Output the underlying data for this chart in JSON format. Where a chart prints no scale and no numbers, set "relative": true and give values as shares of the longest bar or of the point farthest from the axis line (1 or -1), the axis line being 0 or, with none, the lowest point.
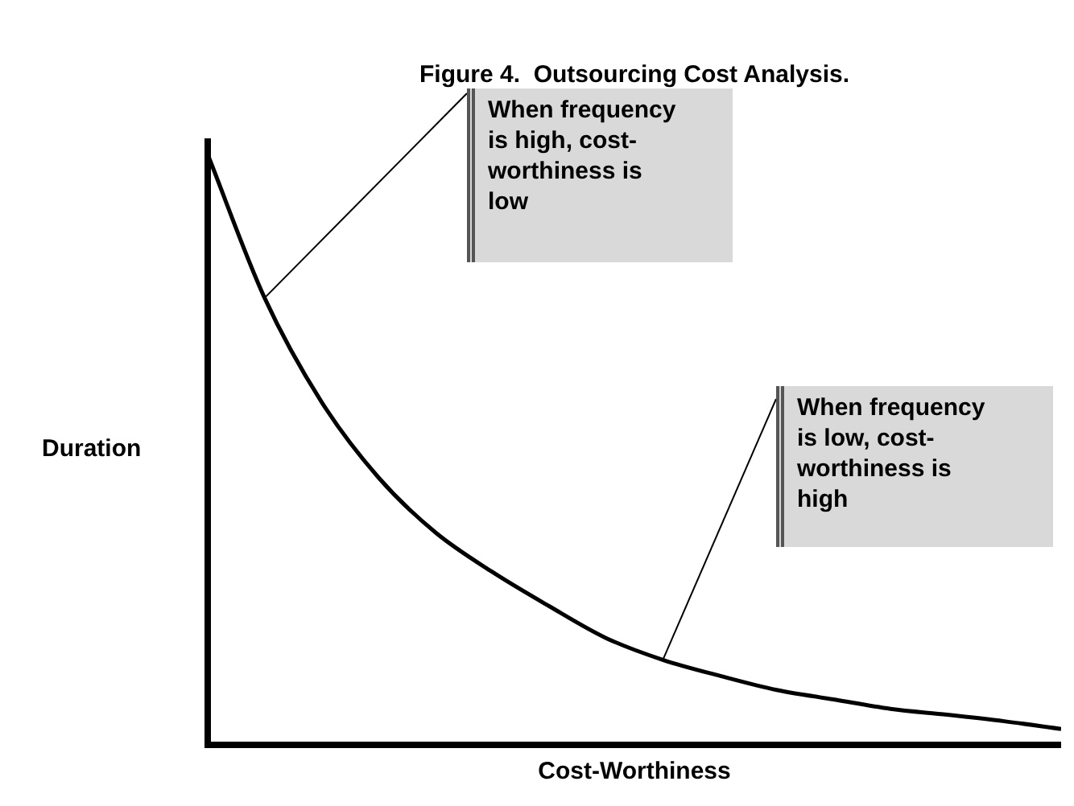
{
  "chart_data": {
    "type": "line",
    "title": "Figure 4.  Outsourcing Cost Analysis.",
    "xlabel": "Cost-Worthiness",
    "ylabel": "Duration",
    "relative": true,
    "categories": [
      null,
      null,
      null,
      null,
      null,
      null,
      null,
      null,
      null,
      null,
      null,
      null,
      null,
      null,
      null,
      null
    ],
    "series": [
      {
        "color": "#000000",
        "values": [
          1.0,
          0.757,
          0.581,
          0.453,
          0.36,
          0.293,
          0.235,
          0.181,
          0.144,
          0.117,
          0.093,
          0.077,
          0.061,
          0.051,
          0.04,
          0.027
        ]
      }
    ],
    "annotations": [
      "When frequency is high, cost-worthiness is low",
      "When frequency is low, cost-worthiness is high"
    ],
    "marker": "none",
    "grid": false,
    "legend": false
  }
}
